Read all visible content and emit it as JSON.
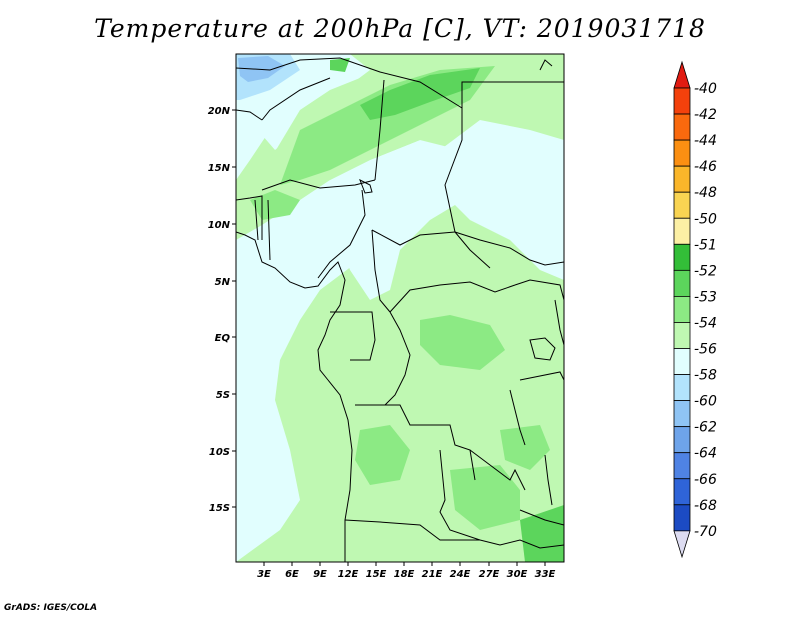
{
  "title": "Temperature at 200hPa [C], VT: 2019031718",
  "credit": "GrADS: IGES/COLA",
  "lat_ticks": [
    "20N",
    "15N",
    "10N",
    "5N",
    "EQ",
    "5S",
    "10S",
    "15S"
  ],
  "lon_ticks": [
    "3E",
    "6E",
    "9E",
    "12E",
    "15E",
    "18E",
    "21E",
    "24E",
    "27E",
    "30E",
    "33E"
  ],
  "colorbar": {
    "labels": [
      "-40",
      "-42",
      "-44",
      "-46",
      "-48",
      "-50",
      "-51",
      "-52",
      "-53",
      "-54",
      "-56",
      "-58",
      "-60",
      "-62",
      "-64",
      "-66",
      "-68",
      "-70"
    ],
    "colors": [
      "#e11b12",
      "#f3410c",
      "#f9690e",
      "#fb8f12",
      "#fab62a",
      "#f9d452",
      "#fcf0a5",
      "#33be38",
      "#5cd55c",
      "#8cea84",
      "#bff8b2",
      "#e1fefe",
      "#b2e3fc",
      "#8fc4f4",
      "#6ea4ea",
      "#4f83e4",
      "#2f64d8",
      "#1c4bc3",
      "#0f2f9a",
      "#000d69",
      "#dddcf1"
    ],
    "top_arrow_color": "#e11b12",
    "bottom_arrow_color": "#dddcf1"
  },
  "field_colors": {
    "c54": "#e1fefe",
    "c53": "#bff8b2",
    "c52": "#8cea84",
    "c51": "#5cd55c",
    "c56": "#b2e3fc",
    "c58": "#8fc4f4"
  }
}
